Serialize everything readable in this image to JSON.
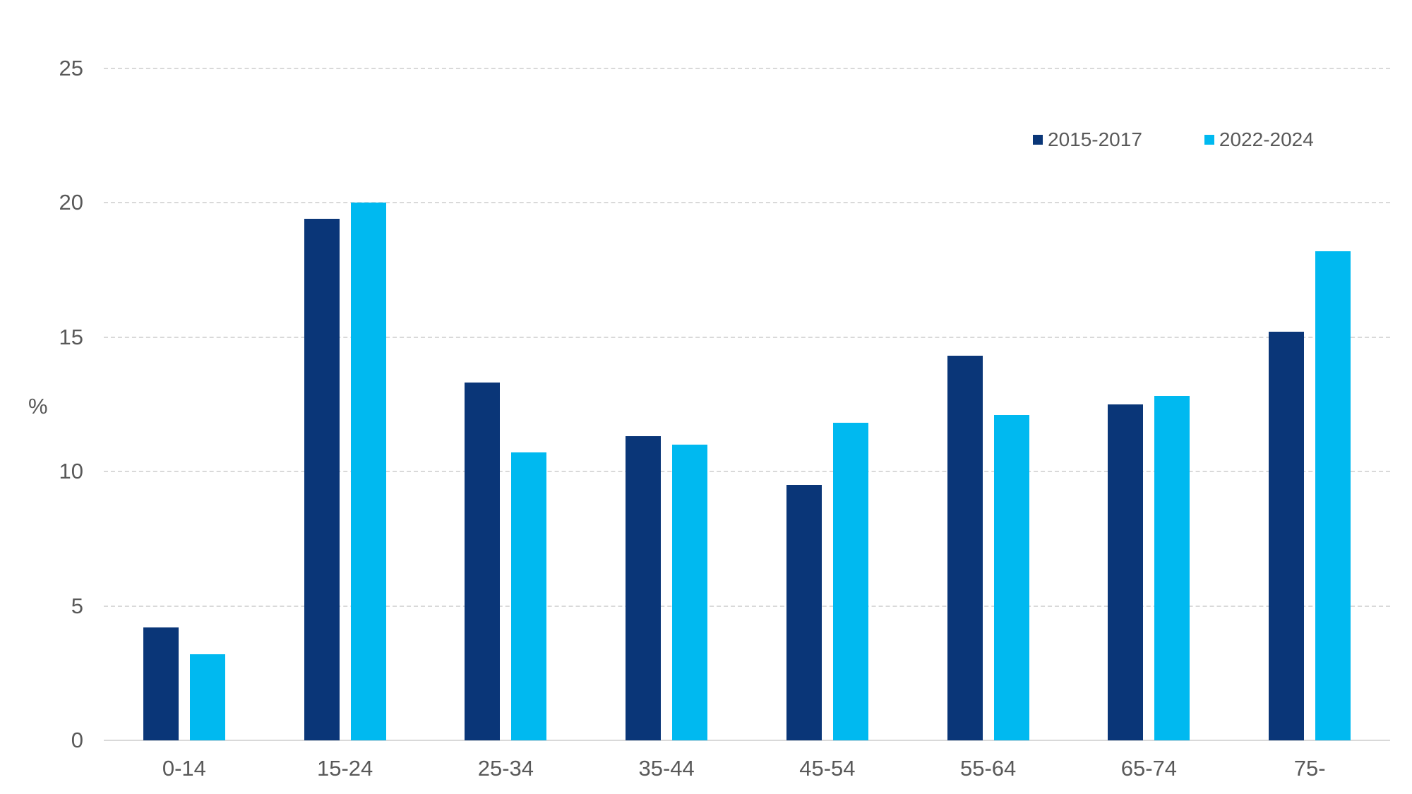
{
  "chart_data": {
    "type": "bar",
    "title": "",
    "xlabel": "",
    "ylabel": "%",
    "ylim": [
      0,
      25
    ],
    "yticks": [
      0,
      5,
      10,
      15,
      20,
      25
    ],
    "grid": true,
    "legend_position": "top-right",
    "categories": [
      "0-14",
      "15-24",
      "25-34",
      "35-44",
      "45-54",
      "55-64",
      "65-74",
      "75-"
    ],
    "series": [
      {
        "name": "2015-2017",
        "color": "#0a3678",
        "values": [
          4.2,
          19.4,
          13.3,
          11.3,
          9.5,
          14.3,
          12.5,
          15.2
        ]
      },
      {
        "name": "2022-2024",
        "color": "#00b9f0",
        "values": [
          3.2,
          20.0,
          10.7,
          11.0,
          11.8,
          12.1,
          12.8,
          18.2
        ]
      }
    ]
  },
  "colors": {
    "text": "#595959",
    "grid": "#d9d9d9",
    "background": "#ffffff"
  }
}
